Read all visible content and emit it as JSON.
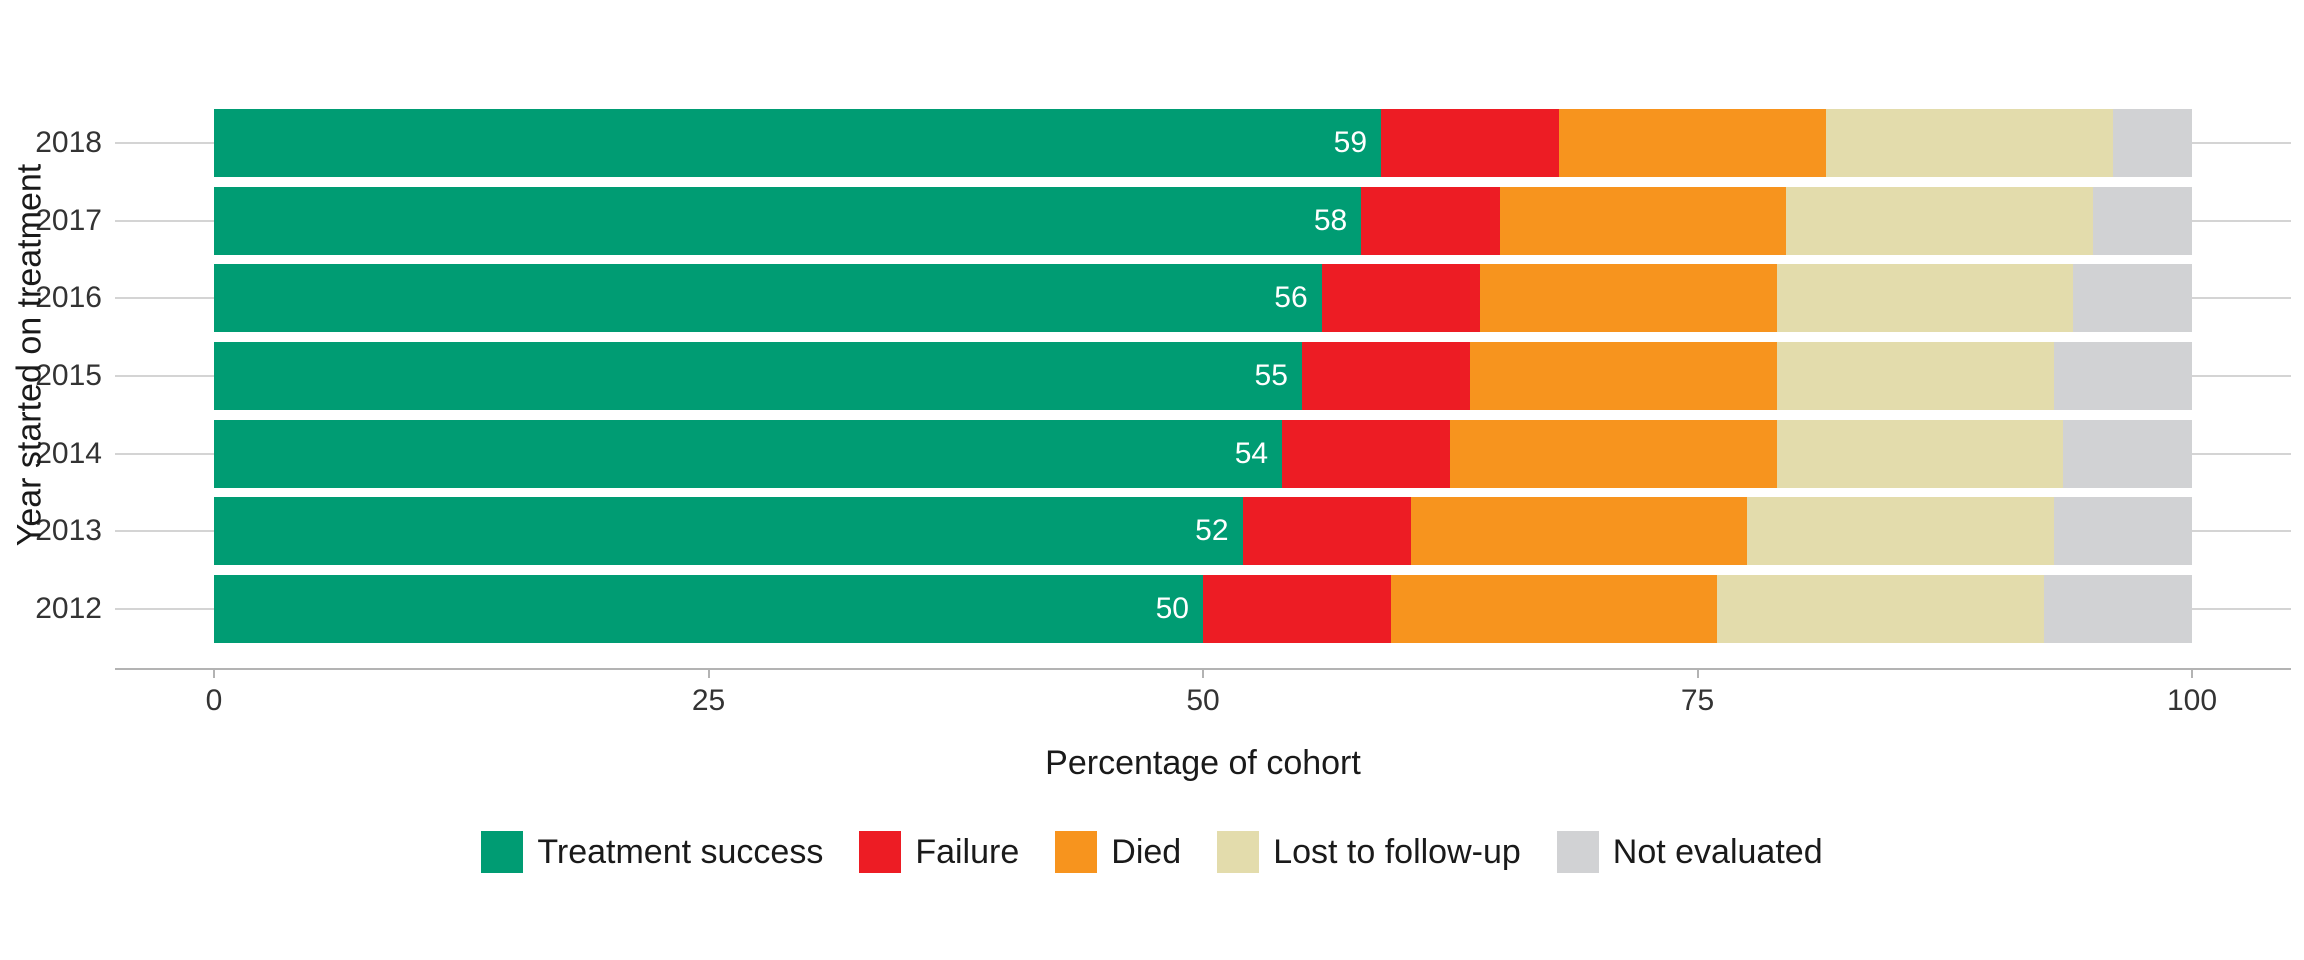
{
  "chart_data": {
    "type": "bar",
    "orientation": "horizontal",
    "stacked": true,
    "title": "",
    "xlabel": "Percentage of cohort",
    "ylabel": "Year started on treatment",
    "categories": [
      "2018",
      "2017",
      "2016",
      "2015",
      "2014",
      "2013",
      "2012"
    ],
    "x_ticks": [
      0,
      25,
      50,
      75,
      100
    ],
    "xlim": [
      0,
      100
    ],
    "grid": "horizontal-only",
    "legend_position": "bottom-center",
    "bar_value_labels": [
      "59",
      "58",
      "56",
      "55",
      "54",
      "52",
      "50"
    ],
    "series": [
      {
        "name": "Treatment success",
        "color": "#009c73",
        "values": [
          59,
          58,
          56,
          55,
          54,
          52,
          50
        ],
        "labels": [
          "59",
          "58",
          "56",
          "55",
          "54",
          "52",
          "50"
        ]
      },
      {
        "name": "Failure",
        "color": "#ed1c24",
        "values": [
          9,
          7,
          8,
          8.5,
          8.5,
          8.5,
          9.5
        ]
      },
      {
        "name": "Died",
        "color": "#f7941e",
        "values": [
          13.5,
          14.5,
          15,
          15.5,
          16.5,
          17,
          16.5
        ]
      },
      {
        "name": "Lost to follow-up",
        "color": "#e3dcac",
        "values": [
          14.5,
          15.5,
          15,
          14,
          14.5,
          15.5,
          16.5
        ]
      },
      {
        "name": "Not evaluated",
        "color": "#d1d2d4",
        "values": [
          4,
          5,
          6,
          7,
          6.5,
          7,
          7.5
        ]
      }
    ]
  },
  "style_colors": {
    "background": "#ffffff",
    "gridline": "#d4d4d4",
    "axis_line": "#b3b3b3",
    "tick_text": "#333333",
    "title_text": "#1a1a1a",
    "bar_label_text": "#ffffff"
  }
}
